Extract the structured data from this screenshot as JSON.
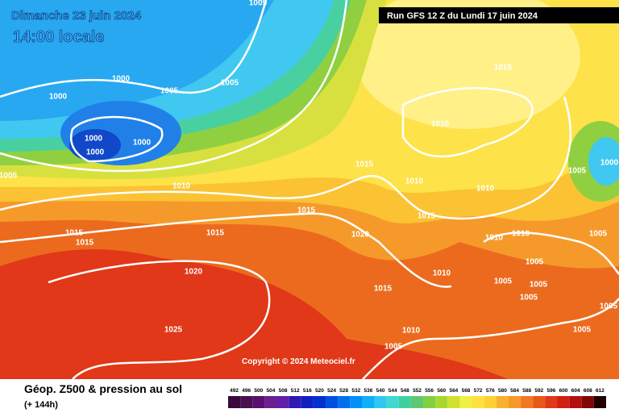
{
  "header": {
    "title": "Dimanche 23 juin 2024",
    "time": "14:00 locale",
    "run": "Run GFS 12 Z du Lundi 17 juin 2024"
  },
  "map": {
    "isobar_labels": [
      "1005",
      "1000",
      "1000",
      "1005",
      "1005",
      "1000",
      "1000",
      "1000",
      "1005",
      "1010",
      "1015",
      "1010",
      "1015",
      "1010",
      "1010",
      "1005",
      "1000",
      "1015",
      "1015",
      "1015",
      "1015",
      "1015",
      "1020",
      "1010",
      "1010",
      "1005",
      "1005",
      "1020",
      "1010",
      "1005",
      "1005",
      "1015",
      "1005",
      "1005",
      "1025",
      "1010",
      "1005",
      "1005"
    ],
    "copyright": "Copyright © 2024 Meteociel.fr"
  },
  "legend": {
    "title": "Géop. Z500 & pression au sol",
    "lead": "(+ 144h)",
    "scale": [
      492,
      496,
      500,
      504,
      508,
      512,
      516,
      520,
      524,
      528,
      532,
      536,
      540,
      544,
      548,
      552,
      556,
      560,
      564,
      568,
      572,
      576,
      580,
      584,
      588,
      592,
      596,
      600,
      604,
      608,
      612
    ],
    "colors": [
      "#3a0a3a",
      "#4a1050",
      "#5a1070",
      "#6a2090",
      "#6020a8",
      "#3018b0",
      "#1020c0",
      "#0030d0",
      "#0050e0",
      "#0070f0",
      "#0090f8",
      "#10b0f8",
      "#30c8f0",
      "#40d8d0",
      "#40d0a0",
      "#60c870",
      "#80d040",
      "#a8d830",
      "#d0e030",
      "#f0f040",
      "#ffe040",
      "#ffd030",
      "#f8b030",
      "#f89828",
      "#f07820",
      "#e85818",
      "#e03818",
      "#d02010",
      "#b01010",
      "#800808",
      "#200000"
    ]
  }
}
